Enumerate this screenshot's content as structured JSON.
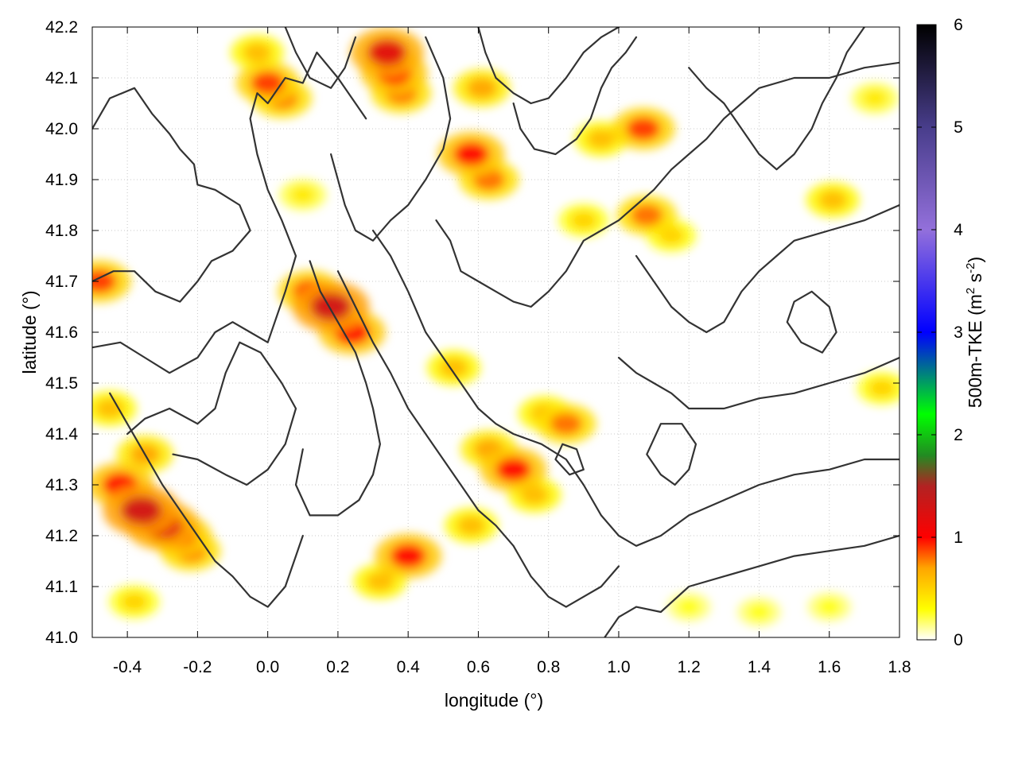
{
  "chart_data": {
    "type": "heatmap",
    "title": "",
    "xlabel": "longitude (°)",
    "ylabel": "latitude (°)",
    "xlim": [
      -0.5,
      1.8
    ],
    "ylim": [
      41.0,
      42.2
    ],
    "xticks": [
      "-0.4",
      "-0.2",
      "0.0",
      "0.2",
      "0.4",
      "0.6",
      "0.8",
      "1.0",
      "1.2",
      "1.4",
      "1.6",
      "1.8"
    ],
    "yticks": [
      "41.0",
      "41.1",
      "41.2",
      "41.3",
      "41.4",
      "41.5",
      "41.6",
      "41.7",
      "41.8",
      "41.9",
      "42.0",
      "42.1",
      "42.2"
    ],
    "grid": true,
    "colorbar": {
      "label": "500m-TKE (m² s⁻²)",
      "label_main": "500m-TKE (m",
      "label_sup1": "2",
      "label_mid": " s",
      "label_sup2": "-2",
      "label_end": ")",
      "range": [
        0,
        6
      ],
      "ticks": [
        "0",
        "1",
        "2",
        "3",
        "4",
        "5",
        "6"
      ],
      "stops": [
        {
          "value": 0.0,
          "color": "#ffffff"
        },
        {
          "value": 0.3,
          "color": "#ffff00"
        },
        {
          "value": 0.7,
          "color": "#ffa500"
        },
        {
          "value": 1.0,
          "color": "#ff0000"
        },
        {
          "value": 1.5,
          "color": "#b22222"
        },
        {
          "value": 1.8,
          "color": "#228b22"
        },
        {
          "value": 2.2,
          "color": "#00ff00"
        },
        {
          "value": 3.0,
          "color": "#0000ff"
        },
        {
          "value": 4.0,
          "color": "#9370db"
        },
        {
          "value": 5.0,
          "color": "#483d8b"
        },
        {
          "value": 6.0,
          "color": "#000000"
        }
      ]
    },
    "tke_features": [
      {
        "lon": 0.18,
        "lat": 41.65,
        "value": 1.3
      },
      {
        "lon": 0.24,
        "lat": 41.6,
        "value": 1.0
      },
      {
        "lon": 0.12,
        "lat": 41.68,
        "value": 0.9
      },
      {
        "lon": -0.36,
        "lat": 41.25,
        "value": 1.3
      },
      {
        "lon": -0.3,
        "lat": 41.22,
        "value": 1.2
      },
      {
        "lon": -0.42,
        "lat": 41.3,
        "value": 1.0
      },
      {
        "lon": -0.25,
        "lat": 41.2,
        "value": 0.9
      },
      {
        "lon": -0.22,
        "lat": 41.17,
        "value": 0.8
      },
      {
        "lon": -0.35,
        "lat": 41.36,
        "value": 0.7
      },
      {
        "lon": -0.45,
        "lat": 41.45,
        "value": 0.6
      },
      {
        "lon": 0.34,
        "lat": 42.15,
        "value": 1.2
      },
      {
        "lon": 0.36,
        "lat": 42.11,
        "value": 1.0
      },
      {
        "lon": 0.38,
        "lat": 42.07,
        "value": 0.8
      },
      {
        "lon": -0.03,
        "lat": 42.15,
        "value": 0.6
      },
      {
        "lon": 0.0,
        "lat": 42.09,
        "value": 0.9
      },
      {
        "lon": 0.04,
        "lat": 42.06,
        "value": 0.8
      },
      {
        "lon": 0.58,
        "lat": 41.95,
        "value": 1.0
      },
      {
        "lon": 0.63,
        "lat": 41.9,
        "value": 0.8
      },
      {
        "lon": 0.61,
        "lat": 42.08,
        "value": 0.7
      },
      {
        "lon": 1.07,
        "lat": 42.0,
        "value": 0.9
      },
      {
        "lon": 1.08,
        "lat": 41.83,
        "value": 0.8
      },
      {
        "lon": 1.15,
        "lat": 41.79,
        "value": 0.5
      },
      {
        "lon": 0.7,
        "lat": 41.33,
        "value": 1.0
      },
      {
        "lon": 0.63,
        "lat": 41.37,
        "value": 0.7
      },
      {
        "lon": 0.76,
        "lat": 41.28,
        "value": 0.6
      },
      {
        "lon": 0.85,
        "lat": 41.42,
        "value": 0.8
      },
      {
        "lon": 0.79,
        "lat": 41.44,
        "value": 0.6
      },
      {
        "lon": 0.4,
        "lat": 41.16,
        "value": 1.0
      },
      {
        "lon": 0.32,
        "lat": 41.11,
        "value": 0.6
      },
      {
        "lon": 0.58,
        "lat": 41.22,
        "value": 0.6
      },
      {
        "lon": 0.53,
        "lat": 41.53,
        "value": 0.6
      },
      {
        "lon": 0.1,
        "lat": 41.87,
        "value": 0.4
      },
      {
        "lon": -0.48,
        "lat": 41.7,
        "value": 0.9
      },
      {
        "lon": -0.38,
        "lat": 41.07,
        "value": 0.5
      },
      {
        "lon": 1.61,
        "lat": 41.86,
        "value": 0.6
      },
      {
        "lon": 1.75,
        "lat": 41.49,
        "value": 0.5
      },
      {
        "lon": 1.73,
        "lat": 42.06,
        "value": 0.4
      },
      {
        "lon": 0.9,
        "lat": 41.82,
        "value": 0.5
      },
      {
        "lon": 0.95,
        "lat": 41.98,
        "value": 0.6
      },
      {
        "lon": 1.2,
        "lat": 41.06,
        "value": 0.3
      },
      {
        "lon": 1.4,
        "lat": 41.05,
        "value": 0.3
      },
      {
        "lon": 1.6,
        "lat": 41.06,
        "value": 0.3
      }
    ],
    "contour_lines": [
      [
        [
          -0.5,
          42.0
        ],
        [
          -0.45,
          42.06
        ],
        [
          -0.38,
          42.08
        ],
        [
          -0.33,
          42.03
        ],
        [
          -0.28,
          41.99
        ],
        [
          -0.25,
          41.96
        ],
        [
          -0.21,
          41.93
        ],
        [
          -0.2,
          41.89
        ],
        [
          -0.15,
          41.88
        ],
        [
          -0.08,
          41.85
        ],
        [
          -0.05,
          41.8
        ],
        [
          -0.1,
          41.76
        ],
        [
          -0.16,
          41.74
        ],
        [
          -0.2,
          41.7
        ],
        [
          -0.25,
          41.66
        ],
        [
          -0.32,
          41.68
        ],
        [
          -0.38,
          41.72
        ],
        [
          -0.44,
          41.72
        ],
        [
          -0.5,
          41.7
        ]
      ],
      [
        [
          -0.5,
          41.57
        ],
        [
          -0.42,
          41.58
        ],
        [
          -0.35,
          41.55
        ],
        [
          -0.28,
          41.52
        ],
        [
          -0.2,
          41.55
        ],
        [
          -0.15,
          41.6
        ],
        [
          -0.1,
          41.62
        ],
        [
          -0.05,
          41.6
        ],
        [
          0.0,
          41.58
        ],
        [
          0.02,
          41.62
        ],
        [
          0.05,
          41.68
        ],
        [
          0.08,
          41.75
        ],
        [
          0.04,
          41.82
        ],
        [
          0.0,
          41.88
        ],
        [
          -0.03,
          41.95
        ],
        [
          -0.05,
          42.02
        ],
        [
          -0.03,
          42.07
        ],
        [
          0.0,
          42.05
        ],
        [
          0.05,
          42.1
        ],
        [
          0.1,
          42.09
        ],
        [
          0.14,
          42.15
        ],
        [
          0.2,
          42.1
        ],
        [
          0.25,
          42.05
        ],
        [
          0.28,
          42.02
        ]
      ],
      [
        [
          -0.45,
          41.48
        ],
        [
          -0.4,
          41.42
        ],
        [
          -0.35,
          41.36
        ],
        [
          -0.3,
          41.3
        ],
        [
          -0.25,
          41.25
        ],
        [
          -0.2,
          41.2
        ],
        [
          -0.15,
          41.15
        ],
        [
          -0.1,
          41.12
        ],
        [
          -0.05,
          41.08
        ],
        [
          0.0,
          41.06
        ],
        [
          0.05,
          41.1
        ],
        [
          0.08,
          41.16
        ],
        [
          0.1,
          41.2
        ]
      ],
      [
        [
          -0.4,
          41.4
        ],
        [
          -0.35,
          41.43
        ],
        [
          -0.28,
          41.45
        ],
        [
          -0.2,
          41.42
        ],
        [
          -0.15,
          41.45
        ],
        [
          -0.12,
          41.52
        ],
        [
          -0.08,
          41.58
        ],
        [
          -0.02,
          41.56
        ],
        [
          0.04,
          41.5
        ],
        [
          0.08,
          41.45
        ],
        [
          0.05,
          41.38
        ],
        [
          0.0,
          41.33
        ],
        [
          -0.06,
          41.3
        ],
        [
          -0.12,
          41.32
        ],
        [
          -0.2,
          41.35
        ],
        [
          -0.27,
          41.36
        ]
      ],
      [
        [
          0.12,
          41.74
        ],
        [
          0.15,
          41.68
        ],
        [
          0.2,
          41.62
        ],
        [
          0.25,
          41.56
        ],
        [
          0.28,
          41.5
        ],
        [
          0.3,
          41.45
        ],
        [
          0.32,
          41.38
        ],
        [
          0.3,
          41.32
        ],
        [
          0.26,
          41.27
        ],
        [
          0.2,
          41.24
        ],
        [
          0.12,
          41.24
        ],
        [
          0.08,
          41.3
        ],
        [
          0.1,
          41.37
        ]
      ],
      [
        [
          0.2,
          41.72
        ],
        [
          0.25,
          41.65
        ],
        [
          0.3,
          41.58
        ],
        [
          0.35,
          41.52
        ],
        [
          0.4,
          41.45
        ],
        [
          0.45,
          41.4
        ],
        [
          0.5,
          41.35
        ],
        [
          0.55,
          41.3
        ],
        [
          0.6,
          41.25
        ],
        [
          0.65,
          41.22
        ],
        [
          0.7,
          41.18
        ],
        [
          0.75,
          41.12
        ],
        [
          0.8,
          41.08
        ],
        [
          0.85,
          41.06
        ],
        [
          0.9,
          41.08
        ],
        [
          0.95,
          41.1
        ],
        [
          1.0,
          41.14
        ]
      ],
      [
        [
          0.3,
          41.8
        ],
        [
          0.35,
          41.75
        ],
        [
          0.4,
          41.68
        ],
        [
          0.45,
          41.6
        ],
        [
          0.5,
          41.55
        ],
        [
          0.55,
          41.5
        ],
        [
          0.6,
          41.45
        ],
        [
          0.65,
          41.42
        ],
        [
          0.7,
          41.4
        ],
        [
          0.78,
          41.38
        ],
        [
          0.85,
          41.35
        ],
        [
          0.9,
          41.3
        ],
        [
          0.95,
          41.24
        ],
        [
          1.0,
          41.2
        ],
        [
          1.05,
          41.18
        ],
        [
          1.12,
          41.2
        ],
        [
          1.2,
          41.24
        ],
        [
          1.3,
          41.27
        ],
        [
          1.4,
          41.3
        ],
        [
          1.5,
          41.32
        ],
        [
          1.6,
          41.33
        ],
        [
          1.7,
          41.35
        ],
        [
          1.8,
          41.35
        ]
      ],
      [
        [
          0.96,
          41.0
        ],
        [
          1.0,
          41.04
        ],
        [
          1.05,
          41.06
        ],
        [
          1.12,
          41.05
        ],
        [
          1.2,
          41.1
        ],
        [
          1.3,
          41.12
        ],
        [
          1.4,
          41.14
        ],
        [
          1.5,
          41.16
        ],
        [
          1.6,
          41.17
        ],
        [
          1.7,
          41.18
        ],
        [
          1.8,
          41.2
        ]
      ],
      [
        [
          0.48,
          41.82
        ],
        [
          0.52,
          41.78
        ],
        [
          0.55,
          41.72
        ],
        [
          0.6,
          41.7
        ],
        [
          0.65,
          41.68
        ],
        [
          0.7,
          41.66
        ],
        [
          0.75,
          41.65
        ],
        [
          0.8,
          41.68
        ],
        [
          0.85,
          41.72
        ],
        [
          0.9,
          41.78
        ],
        [
          0.95,
          41.8
        ],
        [
          1.0,
          41.82
        ],
        [
          1.05,
          41.85
        ],
        [
          1.1,
          41.88
        ],
        [
          1.15,
          41.92
        ],
        [
          1.2,
          41.95
        ],
        [
          1.25,
          41.98
        ],
        [
          1.3,
          42.02
        ],
        [
          1.35,
          42.05
        ],
        [
          1.4,
          42.08
        ],
        [
          1.5,
          42.1
        ],
        [
          1.6,
          42.1
        ],
        [
          1.7,
          42.12
        ],
        [
          1.8,
          42.13
        ]
      ],
      [
        [
          0.6,
          42.2
        ],
        [
          0.62,
          42.15
        ],
        [
          0.65,
          42.1
        ],
        [
          0.7,
          42.07
        ],
        [
          0.75,
          42.05
        ],
        [
          0.8,
          42.06
        ],
        [
          0.85,
          42.1
        ],
        [
          0.9,
          42.15
        ],
        [
          0.95,
          42.18
        ],
        [
          1.0,
          42.2
        ]
      ],
      [
        [
          0.45,
          42.18
        ],
        [
          0.5,
          42.1
        ],
        [
          0.52,
          42.02
        ],
        [
          0.5,
          41.96
        ],
        [
          0.45,
          41.9
        ],
        [
          0.4,
          41.85
        ],
        [
          0.35,
          41.82
        ],
        [
          0.3,
          41.78
        ],
        [
          0.25,
          41.8
        ],
        [
          0.22,
          41.85
        ],
        [
          0.2,
          41.9
        ],
        [
          0.18,
          41.95
        ]
      ],
      [
        [
          1.0,
          41.55
        ],
        [
          1.05,
          41.52
        ],
        [
          1.1,
          41.5
        ],
        [
          1.15,
          41.48
        ],
        [
          1.2,
          41.45
        ],
        [
          1.3,
          41.45
        ],
        [
          1.4,
          41.47
        ],
        [
          1.5,
          41.48
        ],
        [
          1.6,
          41.5
        ],
        [
          1.7,
          41.52
        ],
        [
          1.8,
          41.55
        ]
      ],
      [
        [
          1.05,
          41.75
        ],
        [
          1.1,
          41.7
        ],
        [
          1.15,
          41.65
        ],
        [
          1.2,
          41.62
        ],
        [
          1.25,
          41.6
        ],
        [
          1.3,
          41.62
        ],
        [
          1.35,
          41.68
        ],
        [
          1.4,
          41.72
        ],
        [
          1.45,
          41.75
        ],
        [
          1.5,
          41.78
        ],
        [
          1.6,
          41.8
        ],
        [
          1.7,
          41.82
        ],
        [
          1.8,
          41.85
        ]
      ],
      [
        [
          0.7,
          42.05
        ],
        [
          0.72,
          42.0
        ],
        [
          0.76,
          41.96
        ],
        [
          0.82,
          41.95
        ],
        [
          0.88,
          41.98
        ],
        [
          0.92,
          42.02
        ],
        [
          0.95,
          42.08
        ],
        [
          0.98,
          42.12
        ],
        [
          1.02,
          42.15
        ],
        [
          1.05,
          42.18
        ]
      ],
      [
        [
          1.2,
          42.12
        ],
        [
          1.25,
          42.08
        ],
        [
          1.3,
          42.05
        ],
        [
          1.35,
          42.0
        ],
        [
          1.4,
          41.95
        ],
        [
          1.45,
          41.92
        ],
        [
          1.5,
          41.95
        ],
        [
          1.55,
          42.0
        ],
        [
          1.58,
          42.05
        ],
        [
          1.62,
          42.1
        ],
        [
          1.65,
          42.15
        ],
        [
          1.7,
          42.2
        ]
      ],
      [
        [
          0.05,
          42.2
        ],
        [
          0.08,
          42.15
        ],
        [
          0.12,
          42.1
        ],
        [
          0.18,
          42.08
        ],
        [
          0.22,
          42.12
        ],
        [
          0.25,
          42.18
        ]
      ],
      [
        [
          1.48,
          41.62
        ],
        [
          1.52,
          41.58
        ],
        [
          1.58,
          41.56
        ],
        [
          1.62,
          41.6
        ],
        [
          1.6,
          41.65
        ],
        [
          1.55,
          41.68
        ],
        [
          1.5,
          41.66
        ],
        [
          1.48,
          41.62
        ]
      ],
      [
        [
          1.08,
          41.36
        ],
        [
          1.12,
          41.32
        ],
        [
          1.16,
          41.3
        ],
        [
          1.2,
          41.33
        ],
        [
          1.22,
          41.38
        ],
        [
          1.18,
          41.42
        ],
        [
          1.12,
          41.42
        ],
        [
          1.08,
          41.36
        ]
      ],
      [
        [
          0.82,
          41.35
        ],
        [
          0.86,
          41.32
        ],
        [
          0.9,
          41.33
        ],
        [
          0.88,
          41.37
        ],
        [
          0.84,
          41.38
        ],
        [
          0.82,
          41.35
        ]
      ]
    ]
  }
}
